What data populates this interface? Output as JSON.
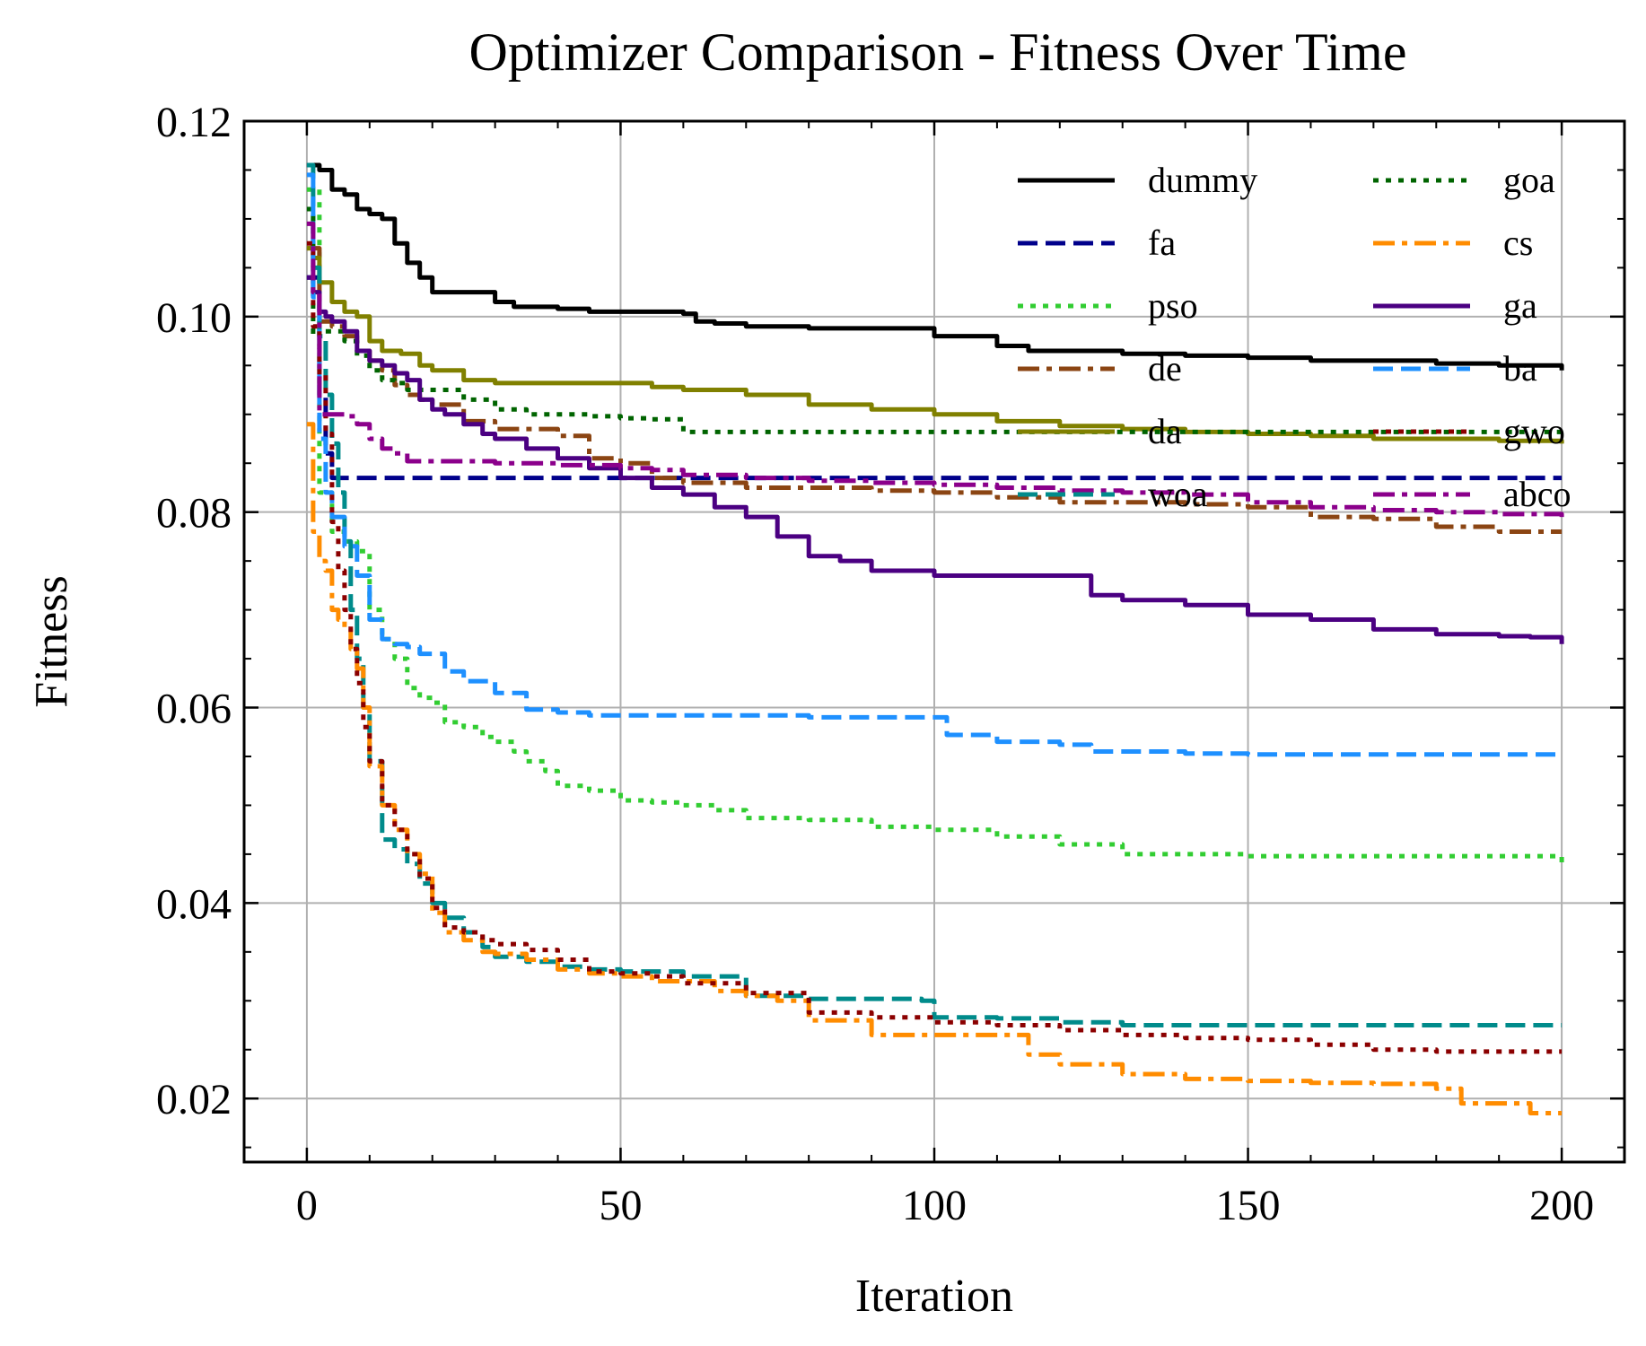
{
  "chart_data": {
    "type": "line",
    "title": "Optimizer Comparison - Fitness Over Time",
    "xlabel": "Iteration",
    "ylabel": "Fitness",
    "xlim": [
      -10,
      210
    ],
    "ylim": [
      0.0135,
      0.12
    ],
    "xticks": [
      0,
      50,
      100,
      150,
      200
    ],
    "xtick_labels": [
      "0",
      "50",
      "100",
      "150",
      "200"
    ],
    "yticks": [
      0.02,
      0.04,
      0.06,
      0.08,
      0.1,
      0.12
    ],
    "ytick_labels": [
      "0.02",
      "0.04",
      "0.06",
      "0.08",
      "0.10",
      "0.12"
    ],
    "grid": true,
    "legend": {
      "placement": "top-right",
      "columns": 2
    },
    "series": [
      {
        "name": "dummy",
        "color": "#000000",
        "style": "solid",
        "x": [
          0,
          2,
          4,
          6,
          8,
          10,
          12,
          14,
          16,
          18,
          20,
          25,
          30,
          33,
          40,
          45,
          50,
          60,
          62,
          65,
          70,
          80,
          90,
          100,
          110,
          115,
          120,
          130,
          140,
          150,
          160,
          170,
          180,
          190,
          195,
          200
        ],
        "values": [
          0.1155,
          0.115,
          0.113,
          0.1125,
          0.111,
          0.1105,
          0.11,
          0.1075,
          0.1055,
          0.104,
          0.1025,
          0.1025,
          0.1015,
          0.101,
          0.1008,
          0.1005,
          0.1005,
          0.1003,
          0.0995,
          0.0993,
          0.099,
          0.0988,
          0.0988,
          0.098,
          0.097,
          0.0965,
          0.0965,
          0.0962,
          0.096,
          0.0958,
          0.0955,
          0.0955,
          0.0952,
          0.095,
          0.095,
          0.0945
        ]
      },
      {
        "name": "fa",
        "color": "#00008b",
        "style": "dashed",
        "x": [
          0,
          2,
          3,
          4,
          200
        ],
        "values": [
          0.104,
          0.092,
          0.086,
          0.0835,
          0.0835
        ]
      },
      {
        "name": "pso",
        "color": "#32cd32",
        "style": "dotted",
        "x": [
          0,
          2,
          4,
          6,
          8,
          10,
          12,
          14,
          16,
          18,
          20,
          22,
          25,
          28,
          30,
          33,
          35,
          38,
          40,
          45,
          50,
          55,
          60,
          65,
          70,
          80,
          90,
          100,
          110,
          120,
          130,
          140,
          150,
          160,
          170,
          180,
          190,
          200
        ],
        "values": [
          0.113,
          0.082,
          0.078,
          0.077,
          0.076,
          0.07,
          0.067,
          0.065,
          0.062,
          0.061,
          0.0605,
          0.0585,
          0.058,
          0.057,
          0.0565,
          0.0555,
          0.0545,
          0.0535,
          0.052,
          0.0515,
          0.0505,
          0.0503,
          0.05,
          0.0495,
          0.0487,
          0.0485,
          0.0478,
          0.0475,
          0.0468,
          0.046,
          0.045,
          0.045,
          0.0448,
          0.0448,
          0.0448,
          0.0448,
          0.0448,
          0.044
        ]
      },
      {
        "name": "de",
        "color": "#8b4513",
        "style": "dashdot",
        "x": [
          0,
          2,
          4,
          6,
          8,
          10,
          12,
          14,
          16,
          18,
          20,
          25,
          30,
          35,
          40,
          45,
          50,
          55,
          60,
          70,
          80,
          90,
          100,
          110,
          120,
          130,
          140,
          150,
          160,
          170,
          180,
          190,
          200
        ],
        "values": [
          0.107,
          0.0995,
          0.099,
          0.098,
          0.0965,
          0.0955,
          0.0945,
          0.093,
          0.092,
          0.0915,
          0.091,
          0.0893,
          0.0885,
          0.0885,
          0.0878,
          0.0855,
          0.085,
          0.0835,
          0.083,
          0.0825,
          0.0825,
          0.0822,
          0.082,
          0.0815,
          0.081,
          0.081,
          0.0808,
          0.0805,
          0.0795,
          0.0793,
          0.0785,
          0.078,
          0.078
        ]
      },
      {
        "name": "da",
        "color": "#808000",
        "style": "solid",
        "x": [
          0,
          1,
          2,
          4,
          6,
          8,
          10,
          12,
          15,
          18,
          20,
          25,
          30,
          40,
          50,
          55,
          60,
          70,
          80,
          90,
          100,
          110,
          120,
          130,
          140,
          150,
          160,
          170,
          180,
          190,
          200
        ],
        "values": [
          0.107,
          0.106,
          0.1035,
          0.1015,
          0.1005,
          0.1,
          0.0975,
          0.0965,
          0.0962,
          0.095,
          0.0945,
          0.0935,
          0.0932,
          0.0932,
          0.0932,
          0.0928,
          0.0925,
          0.092,
          0.091,
          0.0905,
          0.09,
          0.0893,
          0.0888,
          0.0885,
          0.0882,
          0.088,
          0.0878,
          0.0875,
          0.0875,
          0.0873,
          0.087
        ]
      },
      {
        "name": "woa",
        "color": "#008b8b",
        "style": "dashed",
        "x": [
          0,
          1,
          2,
          3,
          4,
          5,
          6,
          7,
          8,
          9,
          10,
          12,
          14,
          16,
          18,
          20,
          22,
          25,
          28,
          30,
          35,
          40,
          45,
          50,
          60,
          70,
          80,
          90,
          98,
          100,
          110,
          120,
          130,
          140,
          150,
          160,
          170,
          180,
          190,
          200
        ],
        "values": [
          0.1155,
          0.105,
          0.098,
          0.092,
          0.087,
          0.082,
          0.077,
          0.07,
          0.065,
          0.06,
          0.0545,
          0.0465,
          0.0455,
          0.044,
          0.042,
          0.04,
          0.0385,
          0.037,
          0.0355,
          0.0345,
          0.034,
          0.0335,
          0.0332,
          0.033,
          0.0325,
          0.0305,
          0.0302,
          0.0302,
          0.03,
          0.0283,
          0.0282,
          0.0278,
          0.0275,
          0.0275,
          0.0275,
          0.0275,
          0.0275,
          0.0275,
          0.0275,
          0.0275
        ]
      },
      {
        "name": "goa",
        "color": "#006400",
        "style": "dotted",
        "x": [
          0,
          1,
          2,
          4,
          6,
          8,
          10,
          12,
          14,
          16,
          18,
          20,
          25,
          30,
          35,
          40,
          45,
          50,
          55,
          60,
          70,
          80,
          90,
          100,
          110,
          120,
          130,
          140,
          150,
          160,
          170,
          180,
          190,
          200
        ],
        "values": [
          0.111,
          0.098,
          0.0985,
          0.0985,
          0.0975,
          0.096,
          0.0945,
          0.0935,
          0.0932,
          0.0925,
          0.0925,
          0.0925,
          0.0915,
          0.0905,
          0.09,
          0.09,
          0.0898,
          0.0896,
          0.0895,
          0.0882,
          0.0882,
          0.0882,
          0.0882,
          0.0882,
          0.0882,
          0.0882,
          0.0882,
          0.0882,
          0.0882,
          0.0882,
          0.0882,
          0.0882,
          0.0882,
          0.0882
        ]
      },
      {
        "name": "cs",
        "color": "#ff8c00",
        "style": "dashdot",
        "x": [
          0,
          1,
          2,
          3,
          4,
          5,
          6,
          7,
          8,
          9,
          10,
          12,
          14,
          16,
          18,
          20,
          22,
          25,
          28,
          30,
          35,
          40,
          45,
          50,
          55,
          60,
          65,
          70,
          75,
          80,
          85,
          90,
          100,
          110,
          115,
          120,
          130,
          140,
          150,
          160,
          170,
          180,
          184,
          190,
          195,
          200
        ],
        "values": [
          0.089,
          0.078,
          0.075,
          0.074,
          0.07,
          0.069,
          0.068,
          0.066,
          0.064,
          0.06,
          0.054,
          0.05,
          0.0475,
          0.045,
          0.043,
          0.039,
          0.037,
          0.0362,
          0.035,
          0.0348,
          0.0342,
          0.0332,
          0.0328,
          0.0325,
          0.032,
          0.032,
          0.031,
          0.0305,
          0.03,
          0.028,
          0.028,
          0.0265,
          0.0265,
          0.0265,
          0.0245,
          0.0235,
          0.0225,
          0.022,
          0.0218,
          0.0216,
          0.0215,
          0.021,
          0.0195,
          0.0195,
          0.0185,
          0.0185
        ]
      },
      {
        "name": "ga",
        "color": "#4b0082",
        "style": "solid",
        "x": [
          0,
          1,
          2,
          3,
          4,
          6,
          8,
          10,
          12,
          14,
          16,
          18,
          20,
          22,
          25,
          28,
          30,
          35,
          40,
          45,
          50,
          55,
          60,
          65,
          70,
          75,
          80,
          85,
          90,
          100,
          110,
          120,
          125,
          130,
          140,
          150,
          160,
          170,
          180,
          190,
          195,
          200
        ],
        "values": [
          0.104,
          0.1025,
          0.1005,
          0.1,
          0.0995,
          0.0985,
          0.0965,
          0.0955,
          0.095,
          0.0942,
          0.0935,
          0.0915,
          0.0905,
          0.09,
          0.089,
          0.088,
          0.0875,
          0.0865,
          0.0855,
          0.0845,
          0.0835,
          0.0825,
          0.0818,
          0.0805,
          0.0795,
          0.0775,
          0.0755,
          0.075,
          0.074,
          0.0735,
          0.0735,
          0.0735,
          0.0715,
          0.071,
          0.0705,
          0.0695,
          0.069,
          0.068,
          0.0675,
          0.0673,
          0.0672,
          0.0665
        ]
      },
      {
        "name": "ba",
        "color": "#1e90ff",
        "style": "dashed",
        "x": [
          0,
          1,
          2,
          3,
          4,
          6,
          8,
          10,
          12,
          14,
          16,
          18,
          20,
          22,
          25,
          30,
          35,
          40,
          45,
          50,
          60,
          70,
          80,
          90,
          100,
          102,
          110,
          120,
          125,
          130,
          140,
          150,
          160,
          170,
          180,
          190,
          200
        ],
        "values": [
          0.1145,
          0.102,
          0.0875,
          0.082,
          0.0795,
          0.0765,
          0.0735,
          0.069,
          0.067,
          0.0665,
          0.0662,
          0.0655,
          0.0655,
          0.0637,
          0.0627,
          0.0615,
          0.0598,
          0.0595,
          0.0592,
          0.0592,
          0.0592,
          0.0592,
          0.059,
          0.059,
          0.059,
          0.0572,
          0.0565,
          0.0562,
          0.0555,
          0.0555,
          0.0553,
          0.0552,
          0.0552,
          0.0552,
          0.0552,
          0.0552,
          0.0552
        ]
      },
      {
        "name": "gwo",
        "color": "#8b0000",
        "style": "dotted",
        "x": [
          0,
          1,
          2,
          3,
          4,
          5,
          6,
          7,
          8,
          9,
          10,
          12,
          14,
          16,
          18,
          20,
          22,
          25,
          28,
          30,
          35,
          40,
          45,
          50,
          55,
          60,
          70,
          80,
          90,
          100,
          110,
          120,
          130,
          140,
          150,
          160,
          170,
          180,
          190,
          200
        ],
        "values": [
          0.1075,
          0.099,
          0.094,
          0.088,
          0.079,
          0.074,
          0.07,
          0.066,
          0.0625,
          0.058,
          0.0545,
          0.05,
          0.0475,
          0.045,
          0.0425,
          0.0395,
          0.0375,
          0.037,
          0.0362,
          0.0358,
          0.0352,
          0.0342,
          0.033,
          0.0328,
          0.0325,
          0.0318,
          0.0308,
          0.0288,
          0.0283,
          0.0278,
          0.0275,
          0.027,
          0.0265,
          0.0262,
          0.026,
          0.0255,
          0.025,
          0.0248,
          0.0248,
          0.0248
        ]
      },
      {
        "name": "abco",
        "color": "#8b008b",
        "style": "dashdot",
        "x": [
          0,
          1,
          2,
          4,
          6,
          8,
          10,
          12,
          14,
          16,
          18,
          20,
          25,
          30,
          35,
          40,
          45,
          50,
          55,
          60,
          70,
          80,
          90,
          100,
          110,
          120,
          130,
          140,
          150,
          160,
          170,
          180,
          190,
          200
        ],
        "values": [
          0.1095,
          0.1025,
          0.09,
          0.09,
          0.0898,
          0.089,
          0.0875,
          0.0865,
          0.086,
          0.0852,
          0.0852,
          0.0852,
          0.0852,
          0.085,
          0.085,
          0.0848,
          0.0848,
          0.0845,
          0.0843,
          0.0838,
          0.0835,
          0.0832,
          0.083,
          0.0828,
          0.0825,
          0.0822,
          0.082,
          0.0818,
          0.081,
          0.0805,
          0.0802,
          0.08,
          0.0798,
          0.0795
        ]
      }
    ]
  }
}
